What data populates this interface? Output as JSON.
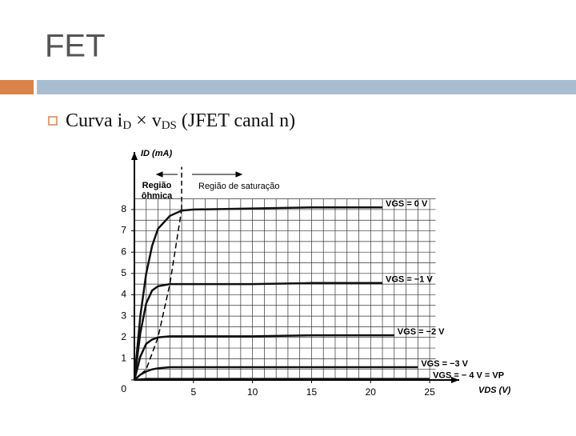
{
  "slide": {
    "title": "FET",
    "bullet": [
      "Curva i",
      "D",
      " × v",
      "DS",
      " (JFET canal n)"
    ]
  },
  "chart_data": {
    "type": "line",
    "x_label": "VDS (V)",
    "y_label": "ID (mA)",
    "annotations": [
      "Região",
      "ôhmica",
      "Região de saturação"
    ],
    "x": [
      0,
      0.5,
      1,
      1.5,
      2,
      3,
      4,
      5,
      10,
      15,
      20,
      21,
      22,
      24,
      25
    ],
    "series": [
      {
        "name": "VGS = 0 V",
        "color": "#111",
        "values": [
          0,
          3,
          5,
          6.3,
          7.1,
          7.7,
          7.95,
          8,
          8.05,
          8.1,
          8.1,
          8.1,
          null,
          null,
          null
        ]
      },
      {
        "name": "VGS = −1 V",
        "color": "#111",
        "values": [
          0,
          2.2,
          3.6,
          4.2,
          4.4,
          4.5,
          4.5,
          4.5,
          4.5,
          4.55,
          4.55,
          4.55,
          null,
          null,
          null
        ]
      },
      {
        "name": "VGS = −2 V",
        "color": "#111",
        "values": [
          0,
          1.1,
          1.7,
          1.9,
          2,
          2.05,
          2.05,
          2.05,
          2.05,
          2.1,
          2.1,
          2.1,
          2.1,
          null,
          null
        ]
      },
      {
        "name": "VGS = −3 V",
        "color": "#111",
        "values": [
          0,
          0.25,
          0.4,
          0.5,
          0.55,
          0.6,
          0.6,
          0.6,
          0.6,
          0.6,
          0.6,
          0.6,
          0.6,
          0.6,
          null
        ]
      },
      {
        "name": "VGS = − 4 V = VP",
        "color": "#111",
        "values": [
          0,
          0.03,
          0.05,
          0.05,
          0.05,
          0.05,
          0.05,
          0.05,
          0.05,
          0.05,
          0.05,
          0.05,
          0.05,
          0.05,
          0.05
        ]
      }
    ],
    "pinchoff": {
      "x": [
        0,
        1,
        2,
        3,
        4
      ],
      "values": [
        0,
        0.5,
        2,
        4.5,
        8
      ]
    },
    "divider": {
      "x": 4,
      "ylim": [
        8,
        10
      ]
    },
    "grid": {
      "dx": 1,
      "dy": 0.5,
      "xmax": 25.5,
      "ymax": 8.5
    },
    "xlim": [
      0,
      27.5
    ],
    "ylim": [
      0,
      10.7
    ],
    "xticks": [
      5,
      10,
      15,
      20,
      25
    ],
    "yticks": [
      0,
      1,
      2,
      3,
      4,
      5,
      6,
      7,
      8
    ]
  }
}
